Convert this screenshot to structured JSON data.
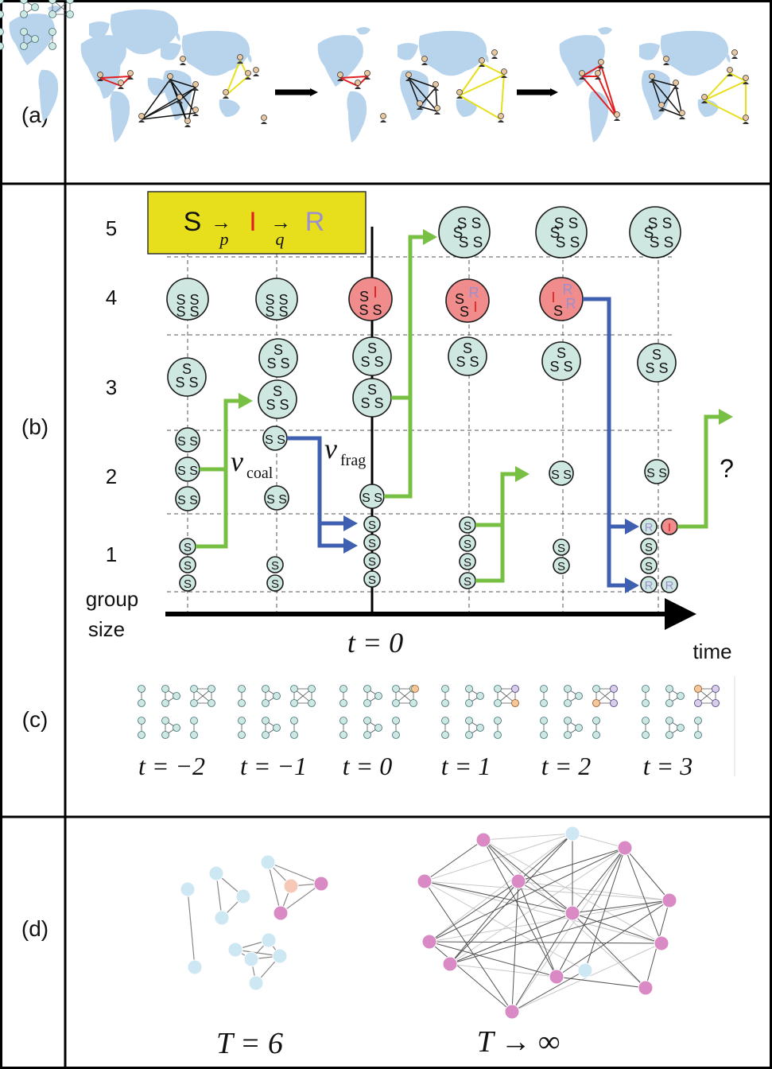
{
  "panels": {
    "a": "(a)",
    "b": "(b)",
    "c": "(c)",
    "d": "(d)"
  },
  "b": {
    "y_ticks": [
      "1",
      "2",
      "3",
      "4",
      "5"
    ],
    "y_label_line1": "group",
    "y_label_line2": "size",
    "x_label": "time",
    "t0": "t = 0",
    "nu_coal_sym": "ν",
    "nu_coal_sub": "coal",
    "nu_frag_sym": "ν",
    "nu_frag_sub": "frag",
    "question": "?",
    "legend": {
      "S": "S",
      "I": "I",
      "R": "R",
      "p": "p",
      "q": "q",
      "arrow": "→"
    }
  },
  "c": {
    "time_labels": [
      "t = −2",
      "t = −1",
      "t = 0",
      "t = 1",
      "t = 2",
      "t = 3"
    ]
  },
  "d": {
    "left_label": "T = 6",
    "right_label": "T → ∞"
  },
  "colors": {
    "susceptible": "#cfe7e1",
    "infected": "#f08c8c",
    "recovered_text": "#9a8fd0",
    "infected_text": "#e02020",
    "coalescence_arrow": "#77c043",
    "fragmentation_arrow": "#3f5fb0",
    "legend_box": "#e8df1c",
    "map": "#b8d4ec",
    "d_pink": "#d98ac4",
    "d_blue": "#cde7f3"
  }
}
